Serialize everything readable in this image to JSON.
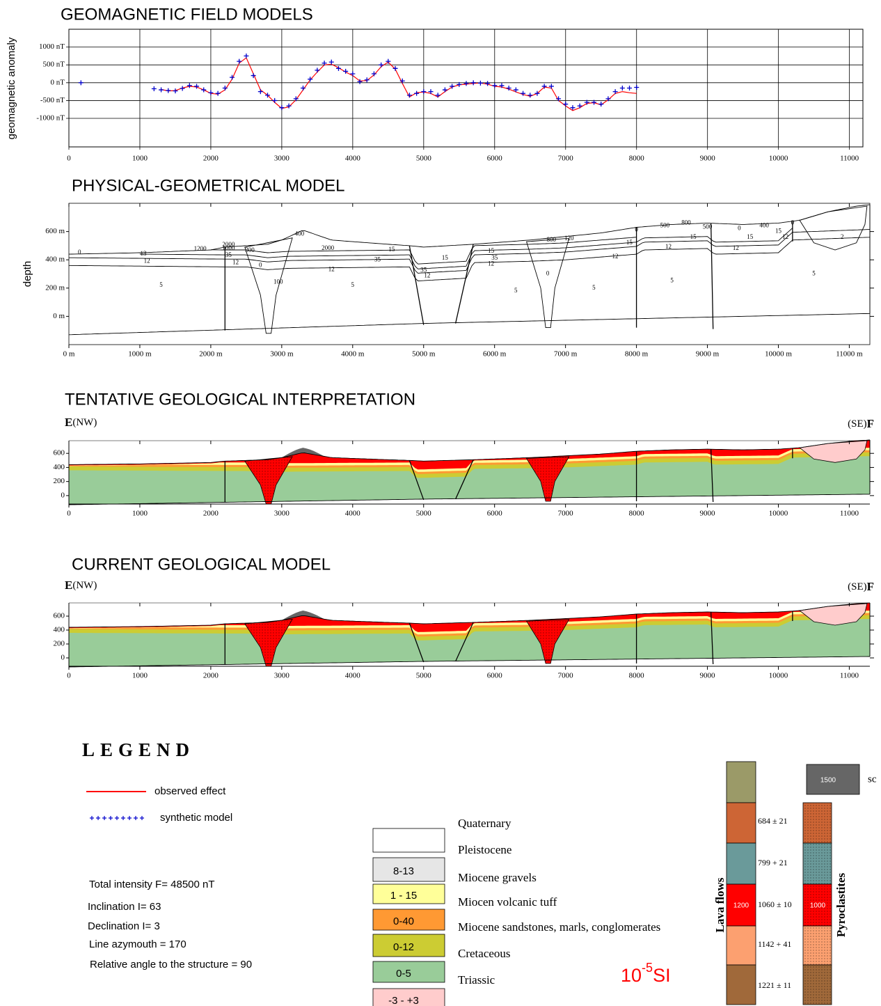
{
  "chart_data": [
    {
      "type": "line",
      "title": "GEOMAGNETIC FIELD MODELS",
      "y_label": "geomagnetic anomaly",
      "x": [
        170,
        1200,
        1300,
        1400,
        1500,
        1600,
        1700,
        1800,
        1900,
        2000,
        2100,
        2200,
        2300,
        2400,
        2500,
        2600,
        2700,
        2800,
        2900,
        3000,
        3100,
        3200,
        3300,
        3400,
        3500,
        3600,
        3700,
        3800,
        3900,
        4000,
        4100,
        4200,
        4300,
        4400,
        4500,
        4600,
        4700,
        4800,
        4900,
        5000,
        5100,
        5200,
        5300,
        5400,
        5500,
        5600,
        5700,
        5800,
        5900,
        6000,
        6100,
        6200,
        6300,
        6400,
        6500,
        6600,
        6700,
        6800,
        6900,
        7000,
        7100,
        7200,
        7300,
        7400,
        7500,
        7600,
        7700,
        7800,
        7900,
        8000
      ],
      "series": [
        {
          "name": "observed effect",
          "color": "#ff0000",
          "values": [
            null,
            null,
            -190,
            -230,
            -220,
            -150,
            -100,
            -120,
            -200,
            -300,
            -320,
            -200,
            100,
            550,
            700,
            250,
            -200,
            -350,
            -550,
            -720,
            -680,
            -480,
            -200,
            80,
            300,
            500,
            520,
            420,
            300,
            200,
            50,
            60,
            220,
            450,
            580,
            380,
            -20,
            -400,
            -280,
            -260,
            -300,
            -400,
            -250,
            -120,
            -60,
            -40,
            -20,
            -10,
            -40,
            -100,
            -120,
            -180,
            -260,
            -330,
            -380,
            -300,
            -120,
            -150,
            -500,
            -650,
            -780,
            -700,
            -580,
            -560,
            -620,
            -480,
            -300,
            -250,
            -280,
            -300
          ]
        },
        {
          "name": "synthetic model",
          "color": "#0000cc",
          "values": [
            0,
            -170,
            -200,
            -220,
            -230,
            -160,
            -80,
            -100,
            -200,
            -280,
            -300,
            -150,
            150,
            600,
            750,
            200,
            -250,
            -350,
            -500,
            -700,
            -650,
            -450,
            -150,
            100,
            350,
            550,
            580,
            400,
            320,
            250,
            30,
            80,
            250,
            500,
            600,
            400,
            50,
            -350,
            -300,
            -250,
            -250,
            -350,
            -200,
            -100,
            -50,
            -20,
            0,
            -10,
            -20,
            -80,
            -80,
            -150,
            -200,
            -300,
            -350,
            -300,
            -100,
            -100,
            -450,
            -600,
            -700,
            -650,
            -550,
            -550,
            -600,
            -450,
            -250,
            -150,
            -150,
            -130
          ]
        }
      ],
      "xlim": [
        0,
        11190
      ],
      "ylim": [
        -1800,
        1500
      ],
      "xticks": [
        0,
        1000,
        2000,
        3000,
        4000,
        5000,
        6000,
        7000,
        8000,
        9000,
        10000,
        11000
      ],
      "yticks": [
        {
          "value": 1000,
          "label": "1000 nT"
        },
        {
          "value": 500,
          "label": "500 nT"
        },
        {
          "value": 0,
          "label": "0 nT"
        },
        {
          "value": -500,
          "label": "-500 nT"
        },
        {
          "value": -1000,
          "label": "-1000 nT"
        }
      ],
      "grid": true
    },
    {
      "type": "section",
      "title": "PHYSICAL-GEOMETRICAL MODEL",
      "y_label": "depth",
      "filled": false,
      "xlim": [
        0,
        11290
      ],
      "ylim": [
        -200,
        800
      ],
      "xticks": [
        {
          "value": 0,
          "label": "0 m"
        },
        {
          "value": 1000,
          "label": "1000 m"
        },
        {
          "value": 2000,
          "label": "2000 m"
        },
        {
          "value": 3000,
          "label": "3000 m"
        },
        {
          "value": 4000,
          "label": "4000 m"
        },
        {
          "value": 5000,
          "label": "5000 m"
        },
        {
          "value": 6000,
          "label": "6000 m"
        },
        {
          "value": 7000,
          "label": "7000 m"
        },
        {
          "value": 8000,
          "label": "8000 m"
        },
        {
          "value": 9000,
          "label": "9000 m"
        },
        {
          "value": 10000,
          "label": "10000 m"
        },
        {
          "value": 11000,
          "label": "11000 m"
        }
      ],
      "yticks": [
        {
          "value": 600,
          "label": "600 m"
        },
        {
          "value": 400,
          "label": "400 m"
        },
        {
          "value": 200,
          "label": "200 m"
        },
        {
          "value": 0,
          "label": "0 m"
        }
      ],
      "annotations": [
        "0",
        "13",
        "1200",
        "2000",
        "1000",
        "300",
        "35",
        "12",
        "12",
        "5",
        "0",
        "100",
        "400",
        "2000",
        "15",
        "35",
        "12",
        "5",
        "15",
        "35",
        "12",
        "15",
        "35",
        "12",
        "5",
        "800",
        "120",
        "0",
        "5",
        "15",
        "12",
        "0",
        "12",
        "500",
        "800",
        "15",
        "500",
        "5",
        "12",
        "0",
        "15",
        "400",
        "15",
        "12",
        "0",
        "2",
        "5"
      ]
    },
    {
      "type": "section",
      "title": "TENTATIVE GEOLOGICAL INTERPRETATION",
      "filled": true,
      "left_label": "E",
      "left_note": "(NW)",
      "right_note": "(SE)",
      "right_label": "F",
      "xlim": [
        0,
        11290
      ],
      "ylim": [
        -120,
        780
      ],
      "xticks": [
        0,
        1000,
        2000,
        3000,
        4000,
        5000,
        6000,
        7000,
        8000,
        9000,
        10000,
        11000
      ],
      "yticks": [
        600,
        400,
        200,
        0
      ]
    },
    {
      "type": "section",
      "title": "CURRENT GEOLOGICAL MODEL",
      "filled": true,
      "left_label": "E",
      "left_note": "(NW)",
      "right_note": "(SE)",
      "right_label": "F",
      "xlim": [
        0,
        11290
      ],
      "ylim": [
        -120,
        790
      ],
      "xticks": [
        0,
        1000,
        2000,
        3000,
        4000,
        5000,
        6000,
        7000,
        8000,
        9000,
        10000,
        11000
      ],
      "yticks": [
        600,
        400,
        200,
        0
      ]
    }
  ],
  "legend": {
    "title": "LEGEND",
    "parameters": [
      "Total intensity F= 48500 nT",
      "Inclination I= 63",
      "Declination I= 3",
      "Line azymouth = 170",
      "Relative angle to the structure = 90"
    ],
    "units": [
      {
        "label": "Quaternary",
        "color": "#ffffff"
      },
      {
        "label": "Pleistocene",
        "value": "8-13",
        "color": "#e6e6e6"
      },
      {
        "label": "Miocene gravels",
        "value": "1 - 15",
        "color": "#ffff99"
      },
      {
        "label": "Miocen volcanic tuff",
        "value": "0-40",
        "color": "#ff9933"
      },
      {
        "label": "Miocene sandstones, marls, conglomerates",
        "value": "0-12",
        "color": "#cccc33"
      },
      {
        "label": "Cretaceous",
        "value": "0-5",
        "color": "#99cc99"
      },
      {
        "label": "Triassic",
        "value": "-3 - +3",
        "color": "#ffcccc"
      }
    ],
    "si": {
      "base": "10",
      "exp": "-5",
      "unit": "SI"
    },
    "lava_flows": {
      "label": "Lava flows",
      "red_value": "1200",
      "colors": [
        "#9b9a68",
        "#cd6535",
        "#6a9a9a",
        "#ff0000",
        "#fca070",
        "#a0693a"
      ],
      "values": [
        "684 ± 21",
        "799 + 21",
        "1060 ± 10",
        "1142 + 41",
        "1221 ± 11"
      ]
    },
    "pyroclastites": {
      "label": "Pyroclastites",
      "red_value": "1000"
    },
    "scoria": {
      "value": "1500",
      "label": "sc",
      "color": "#666666"
    }
  }
}
